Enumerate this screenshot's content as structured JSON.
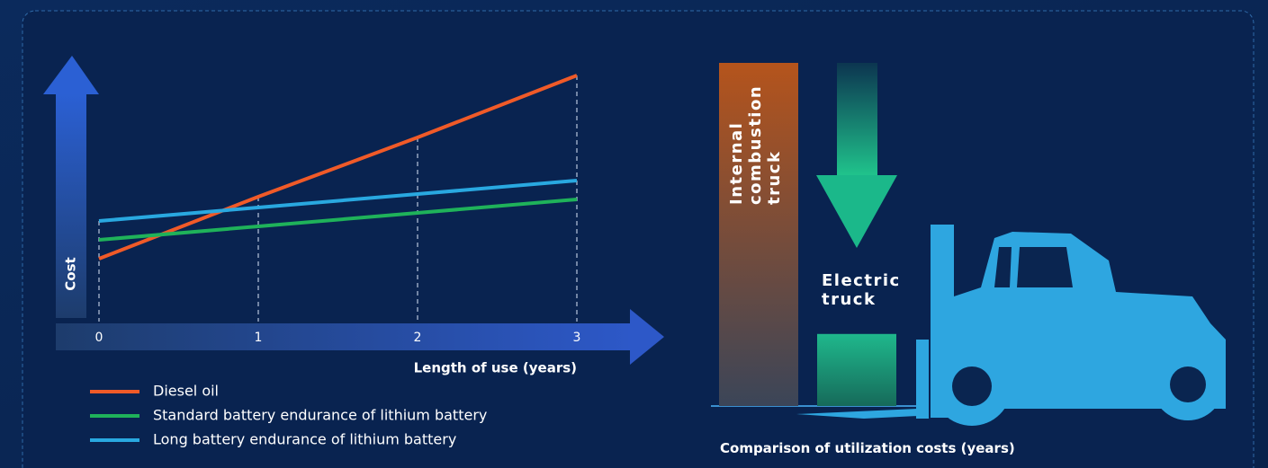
{
  "chart_data": [
    {
      "type": "line",
      "x_label": "Length of use (years)",
      "y_label": "Cost",
      "x": [
        0,
        1,
        2,
        3
      ],
      "xlim": [
        0,
        3
      ],
      "xticks": [
        0,
        1,
        2,
        3
      ],
      "ylim": [
        0,
        100
      ],
      "series": [
        {
          "name": "Diesel oil",
          "color": "#f05a28",
          "values": [
            29,
            52,
            74,
            97
          ]
        },
        {
          "name": "Standard battery endurance of lithium battery",
          "color": "#1fb25a",
          "values": [
            36,
            41,
            46,
            51
          ]
        },
        {
          "name": "Long battery endurance of lithium battery",
          "color": "#29a8e0",
          "values": [
            43,
            48,
            53,
            58
          ]
        }
      ]
    },
    {
      "type": "bar",
      "title": "Comparison of utilization costs (years)",
      "categories": [
        "Internal combustion truck",
        "Electric truck"
      ],
      "values": [
        100,
        21
      ],
      "colors": [
        "#b5541c",
        "#1fb88c"
      ],
      "ylim": [
        0,
        100
      ]
    }
  ]
}
